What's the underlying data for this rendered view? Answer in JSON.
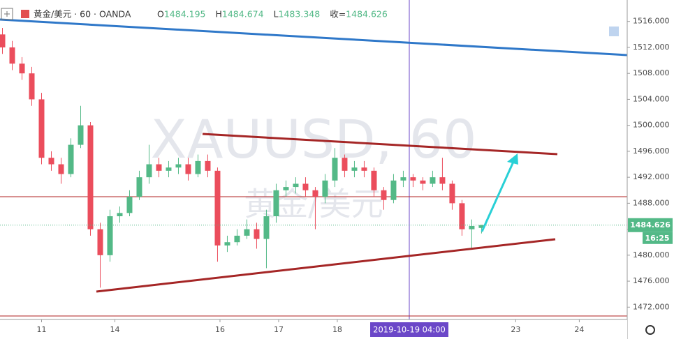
{
  "chart_data": {
    "type": "candlestick",
    "symbol": "黄金/美元 · 60 · OANDA",
    "watermark": "XAUUSD, 60",
    "watermark_sub": "黄金/美元",
    "legend_labels": {
      "open": "O",
      "high": "H",
      "low": "L",
      "close": "收="
    },
    "x": [
      1,
      5,
      9,
      13,
      17,
      21,
      25,
      29,
      33,
      37,
      41,
      45,
      49,
      53,
      57,
      61,
      65,
      69,
      73,
      77,
      81,
      85,
      89,
      93,
      97,
      101,
      105,
      109,
      113,
      117,
      121,
      125,
      129,
      133,
      137,
      141,
      145,
      149,
      153,
      157,
      161,
      165,
      169,
      173,
      177,
      181,
      185,
      189,
      193,
      197
    ],
    "open": [
      1514,
      1512,
      1509.5,
      1508,
      1504,
      1495,
      1494,
      1492.5,
      1497,
      1500,
      1484,
      1480,
      1486,
      1486.5,
      1489,
      1492,
      1494,
      1493,
      1493.5,
      1494,
      1492.5,
      1494.5,
      1493,
      1481.5,
      1482,
      1483,
      1484,
      1482.5,
      1486,
      1490,
      1490.5,
      1491,
      1490,
      1489,
      1491.5,
      1495,
      1493,
      1493.5,
      1493,
      1490,
      1488.5,
      1491.5,
      1492,
      1491.5,
      1491,
      1492,
      1491,
      1488,
      1484,
      1484.195
    ],
    "high": [
      1515,
      1513,
      1510.5,
      1509,
      1505,
      1496,
      1495,
      1498,
      1503,
      1500.5,
      1485,
      1487,
      1487.5,
      1490,
      1493,
      1497,
      1495,
      1494.5,
      1495,
      1495,
      1495.5,
      1495.5,
      1493.5,
      1483,
      1484,
      1485.5,
      1485,
      1487,
      1491,
      1491.5,
      1492,
      1492,
      1490.5,
      1492.5,
      1496.5,
      1495.5,
      1494.5,
      1494.5,
      1493.5,
      1490.5,
      1492.5,
      1493,
      1492.5,
      1492,
      1493,
      1495,
      1491.5,
      1488.5,
      1485.5,
      1484.674
    ],
    "low": [
      1511,
      1508.5,
      1507,
      1503,
      1494,
      1493,
      1491,
      1492,
      1496.5,
      1483,
      1475,
      1479,
      1485,
      1486,
      1488.5,
      1491,
      1492,
      1492,
      1492.5,
      1491.5,
      1492,
      1492,
      1479,
      1480.5,
      1481.5,
      1482.5,
      1481,
      1478,
      1485,
      1489,
      1489.5,
      1489,
      1484,
      1488,
      1490.5,
      1492,
      1492,
      1492,
      1489,
      1487,
      1488,
      1490.5,
      1490.5,
      1490,
      1490.5,
      1490,
      1487,
      1483,
      1481,
      1483.348
    ],
    "close": [
      1512,
      1509.5,
      1508,
      1504,
      1495,
      1494,
      1492.5,
      1497,
      1500,
      1484,
      1480,
      1486,
      1486.5,
      1489,
      1492,
      1494,
      1493,
      1493.5,
      1494,
      1492.5,
      1494.5,
      1493,
      1481.5,
      1482,
      1483,
      1484,
      1482.5,
      1486,
      1490,
      1490.5,
      1491,
      1490,
      1489,
      1491.5,
      1495,
      1493,
      1493.5,
      1493,
      1490,
      1488.5,
      1491.5,
      1492,
      1491.5,
      1491,
      1492,
      1491,
      1488,
      1484,
      1484.5,
      1484.626
    ],
    "up_color": "#53b987",
    "down_color": "#eb4d5c",
    "last_timer": "16:25",
    "crosshair_label": "2019-10-19  04:00",
    "xlim": [
      0,
      256.6
    ],
    "xticks": [
      {
        "value": 17,
        "label": "11"
      },
      {
        "value": 47,
        "label": "14"
      },
      {
        "value": 90,
        "label": "16"
      },
      {
        "value": 114,
        "label": "17"
      },
      {
        "value": 138,
        "label": "18"
      },
      {
        "value": 211,
        "label": "23"
      },
      {
        "value": 237,
        "label": "24"
      }
    ],
    "ylim": [
      1470.1,
      1519.3
    ],
    "yticks": [
      {
        "value": 1472,
        "label": "1472.000"
      },
      {
        "value": 1476,
        "label": "1476.000"
      },
      {
        "value": 1480,
        "label": "1480.000"
      },
      {
        "value": 1484,
        "label": "1484.000"
      },
      {
        "value": 1488,
        "label": "1488.000"
      },
      {
        "value": 1492,
        "label": "1492.000"
      },
      {
        "value": 1496,
        "label": "1496.000"
      },
      {
        "value": 1500,
        "label": "1500.000"
      },
      {
        "value": 1504,
        "label": "1504.000"
      },
      {
        "value": 1508,
        "label": "1508.000"
      },
      {
        "value": 1512,
        "label": "1512.000"
      },
      {
        "value": 1516,
        "label": "1516.000"
      }
    ]
  }
}
